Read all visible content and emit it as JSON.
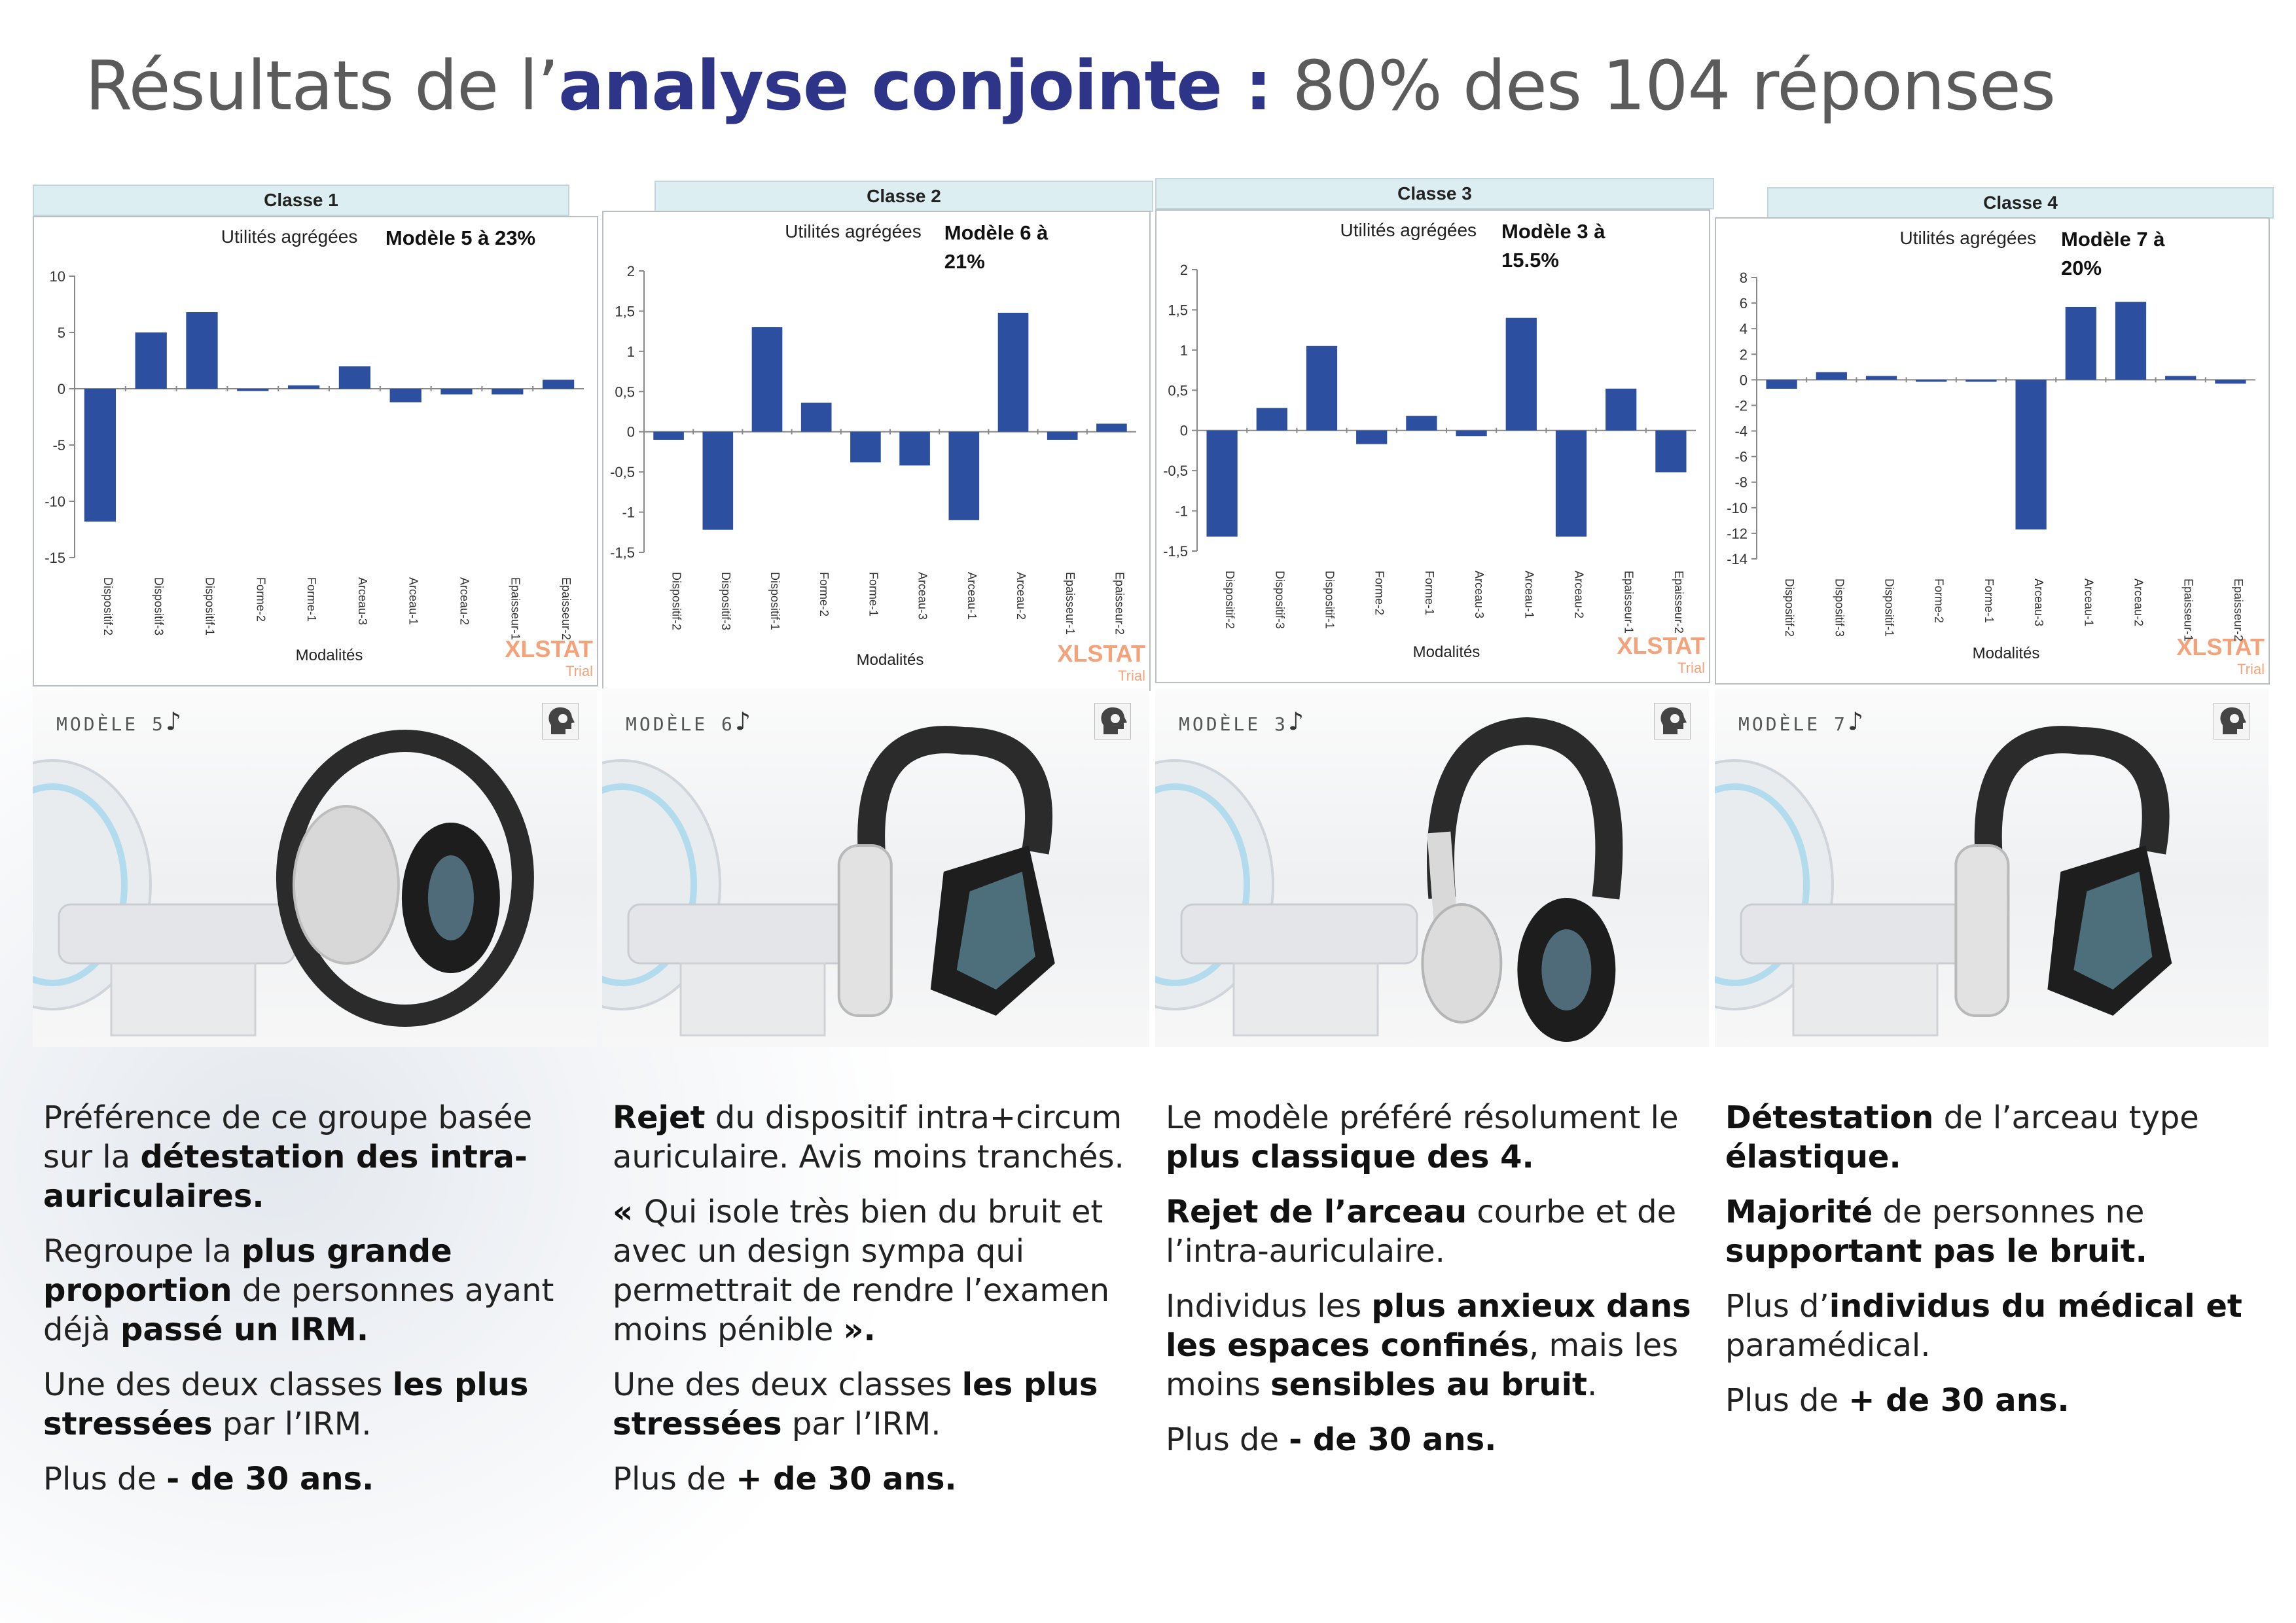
{
  "title": {
    "part1": "Résultats de l’",
    "bold": "analyse conjointe :",
    "part2": " 80% des 104 réponses"
  },
  "panels": [
    {
      "class_label": "Classe 1",
      "chart_title": "Utilités agrégées",
      "model_text": [
        "Modèle 5 à 23%"
      ],
      "xlabel": "Modalités",
      "brand": "XLSTAT",
      "brand_sub": "Trial",
      "photo_label": "MODÈLE 5",
      "texts": [
        [
          {
            "t": "Préférence de ce groupe basée sur la "
          },
          {
            "t": "détestation des intra-auriculaires.",
            "b": true
          }
        ],
        [
          {
            "t": "Regroupe la "
          },
          {
            "t": "plus grande proportion",
            "b": true
          },
          {
            "t": " de personnes ayant déjà "
          },
          {
            "t": "passé un IRM.",
            "b": true
          }
        ],
        [
          {
            "t": "Une des deux classes "
          },
          {
            "t": "les plus stressées",
            "b": true
          },
          {
            "t": " par l’IRM."
          }
        ],
        [
          {
            "t": "Plus de "
          },
          {
            "t": "- de 30 ans.",
            "b": true
          }
        ]
      ]
    },
    {
      "class_label": "Classe 2",
      "chart_title": "Utilités agrégées",
      "model_text": [
        "Modèle 6 à",
        "21%"
      ],
      "xlabel": "Modalités",
      "brand": "XLSTAT",
      "brand_sub": "Trial",
      "photo_label": "MODÈLE 6",
      "texts": [
        [
          {
            "t": "Rejet",
            "b": true
          },
          {
            "t": " du dispositif intra+circum auriculaire. Avis moins tranchés."
          }
        ],
        [
          {
            "t": "« ",
            "b": true
          },
          {
            "t": "Qui isole très bien du bruit et avec un design sympa qui permettrait de rendre l’examen moins pénible "
          },
          {
            "t": "».",
            "b": true
          }
        ],
        [
          {
            "t": "Une des deux classes "
          },
          {
            "t": "les plus stressées",
            "b": true
          },
          {
            "t": " par l’IRM."
          }
        ],
        [
          {
            "t": "Plus de "
          },
          {
            "t": "+ de 30 ans.",
            "b": true
          }
        ]
      ]
    },
    {
      "class_label": "Classe 3",
      "chart_title": "Utilités agrégées",
      "model_text": [
        "Modèle 3 à",
        "15.5%"
      ],
      "xlabel": "Modalités",
      "brand": "XLSTAT",
      "brand_sub": "Trial",
      "photo_label": "MODÈLE 3",
      "texts": [
        [
          {
            "t": "Le modèle préféré résolument le "
          },
          {
            "t": "plus classique des 4.",
            "b": true
          }
        ],
        [
          {
            "t": "Rejet de l’arceau",
            "b": true
          },
          {
            "t": " courbe et de l’intra-auriculaire."
          }
        ],
        [
          {
            "t": "Individus les "
          },
          {
            "t": "plus anxieux dans les espaces confinés",
            "b": true
          },
          {
            "t": ", mais les moins "
          },
          {
            "t": "sensibles au bruit",
            "b": true
          },
          {
            "t": "."
          }
        ],
        [
          {
            "t": "Plus de "
          },
          {
            "t": "- de 30 ans.",
            "b": true
          }
        ]
      ]
    },
    {
      "class_label": "Classe 4",
      "chart_title": "Utilités agrégées",
      "model_text": [
        "Modèle 7 à",
        "20%"
      ],
      "xlabel": "Modalités",
      "brand": "XLSTAT",
      "brand_sub": "Trial",
      "photo_label": "MODÈLE 7",
      "texts": [
        [
          {
            "t": "Détestation",
            "b": true
          },
          {
            "t": " de l’arceau type "
          },
          {
            "t": "élastique.",
            "b": true
          }
        ],
        [
          {
            "t": "Majorité",
            "b": true
          },
          {
            "t": " de personnes ne "
          },
          {
            "t": "supportant pas le bruit.",
            "b": true
          }
        ],
        [
          {
            "t": "Plus d’"
          },
          {
            "t": "individus du médical et",
            "b": true
          },
          {
            "t": " paramédical."
          }
        ],
        [
          {
            "t": "Plus de "
          },
          {
            "t": "+ de 30 ans.",
            "b": true
          }
        ]
      ]
    }
  ],
  "chart_data": [
    {
      "type": "bar",
      "title": "Utilités agrégées",
      "xlabel": "Modalités",
      "ylabel": "",
      "ylim": [
        -15,
        10
      ],
      "yticks": [
        10,
        5,
        0,
        -5,
        -10,
        -15
      ],
      "ytick_labels": [
        "10",
        "5",
        "0",
        "-5",
        "-10",
        "-15"
      ],
      "categories": [
        "Dispositif-2",
        "Dispositif-3",
        "Dispositif-1",
        "Forme-2",
        "Forme-1",
        "Arceau-3",
        "Arceau-1",
        "Arceau-2",
        "Epaisseur-1",
        "Epaisseur-2"
      ],
      "values": [
        -11.8,
        5.0,
        6.8,
        -0.2,
        0.3,
        2.0,
        -1.2,
        -0.5,
        -0.5,
        0.8
      ],
      "color": "#2c4fa0",
      "grid": false,
      "legend": false
    },
    {
      "type": "bar",
      "title": "Utilités agrégées",
      "xlabel": "Modalités",
      "ylabel": "",
      "ylim": [
        -1.5,
        2
      ],
      "yticks": [
        2,
        1.5,
        1,
        0.5,
        0,
        -0.5,
        -1,
        -1.5
      ],
      "ytick_labels": [
        "2",
        "1,5",
        "1",
        "0,5",
        "0",
        "-0,5",
        "-1",
        "-1,5"
      ],
      "categories": [
        "Dispositif-2",
        "Dispositif-3",
        "Dispositif-1",
        "Forme-2",
        "Forme-1",
        "Arceau-3",
        "Arceau-1",
        "Arceau-2",
        "Epaisseur-1",
        "Epaisseur-2"
      ],
      "values": [
        -0.1,
        -1.22,
        1.3,
        0.36,
        -0.38,
        -0.42,
        -1.1,
        1.48,
        -0.1,
        0.1
      ],
      "color": "#2c4fa0",
      "grid": false,
      "legend": false
    },
    {
      "type": "bar",
      "title": "Utilités agrégées",
      "xlabel": "Modalités",
      "ylabel": "",
      "ylim": [
        -1.5,
        2
      ],
      "yticks": [
        2,
        1.5,
        1,
        0.5,
        0,
        -0.5,
        -1,
        -1.5
      ],
      "ytick_labels": [
        "2",
        "1,5",
        "1",
        "0,5",
        "0",
        "-0,5",
        "-1",
        "-1,5"
      ],
      "categories": [
        "Dispositif-2",
        "Dispositif-3",
        "Dispositif-1",
        "Forme-2",
        "Forme-1",
        "Arceau-3",
        "Arceau-1",
        "Arceau-2",
        "Epaisseur-1",
        "Epaisseur-2"
      ],
      "values": [
        -1.32,
        0.28,
        1.05,
        -0.17,
        0.18,
        -0.07,
        1.4,
        -1.32,
        0.52,
        -0.52
      ],
      "color": "#2c4fa0",
      "grid": false,
      "legend": false
    },
    {
      "type": "bar",
      "title": "Utilités agrégées",
      "xlabel": "Modalités",
      "ylabel": "",
      "ylim": [
        -14,
        8
      ],
      "yticks": [
        8,
        6,
        4,
        2,
        0,
        -2,
        -4,
        -6,
        -8,
        -10,
        -12,
        -14
      ],
      "ytick_labels": [
        "8",
        "6",
        "4",
        "2",
        "0",
        "-2",
        "-4",
        "-6",
        "-8",
        "-10",
        "-12",
        "-14"
      ],
      "categories": [
        "Dispositif-2",
        "Dispositif-3",
        "Dispositif-1",
        "Forme-2",
        "Forme-1",
        "Arceau-3",
        "Arceau-1",
        "Arceau-2",
        "Epaisseur-1",
        "Epaisseur-2"
      ],
      "values": [
        -0.7,
        0.6,
        0.3,
        0.0,
        0.0,
        -11.7,
        5.7,
        6.1,
        0.3,
        -0.3
      ],
      "color": "#2c4fa0",
      "grid": false,
      "legend": false
    }
  ]
}
